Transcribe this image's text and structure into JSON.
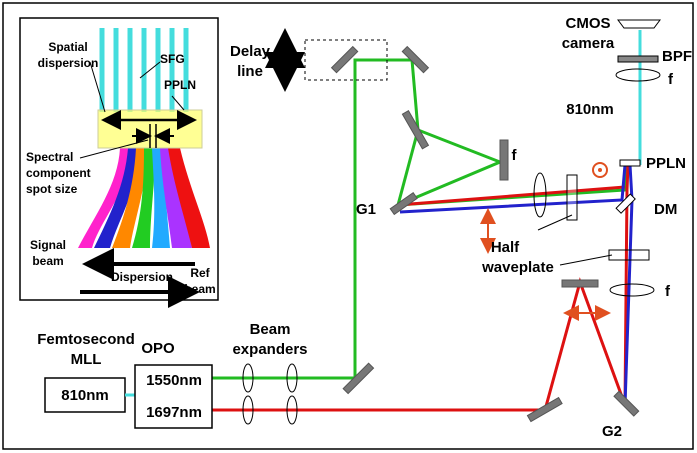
{
  "inset": {
    "spatial_dispersion": [
      "Spatial",
      "dispersion"
    ],
    "sfg": "SFG",
    "ppln": "PPLN",
    "spot_size": [
      "Spectral",
      "component",
      "spot size"
    ],
    "signal_beam": [
      "Signal",
      "beam"
    ],
    "dispersion": "Dispersion",
    "ref_beam": [
      "Ref",
      "beam"
    ]
  },
  "main": {
    "delay_line": [
      "Delay",
      "line"
    ],
    "g1": "G1",
    "lens_f1": "f",
    "half_waveplate": [
      "Half",
      "waveplate"
    ],
    "cmos_camera": [
      "CMOS",
      "camera"
    ],
    "bpf": "BPF",
    "lens_f2": "f",
    "sfg_wavelength": "810nm",
    "ppln": "PPLN",
    "dm": "DM",
    "lens_f3": "f",
    "femtosecond_mll": [
      "Femtosecond",
      "MLL"
    ],
    "mll_output": "810nm",
    "opo": "OPO",
    "opo_signal": "1550nm",
    "opo_idler": "1697nm",
    "beam_expanders": [
      "Beam",
      "expanders"
    ],
    "g2": "G2"
  }
}
